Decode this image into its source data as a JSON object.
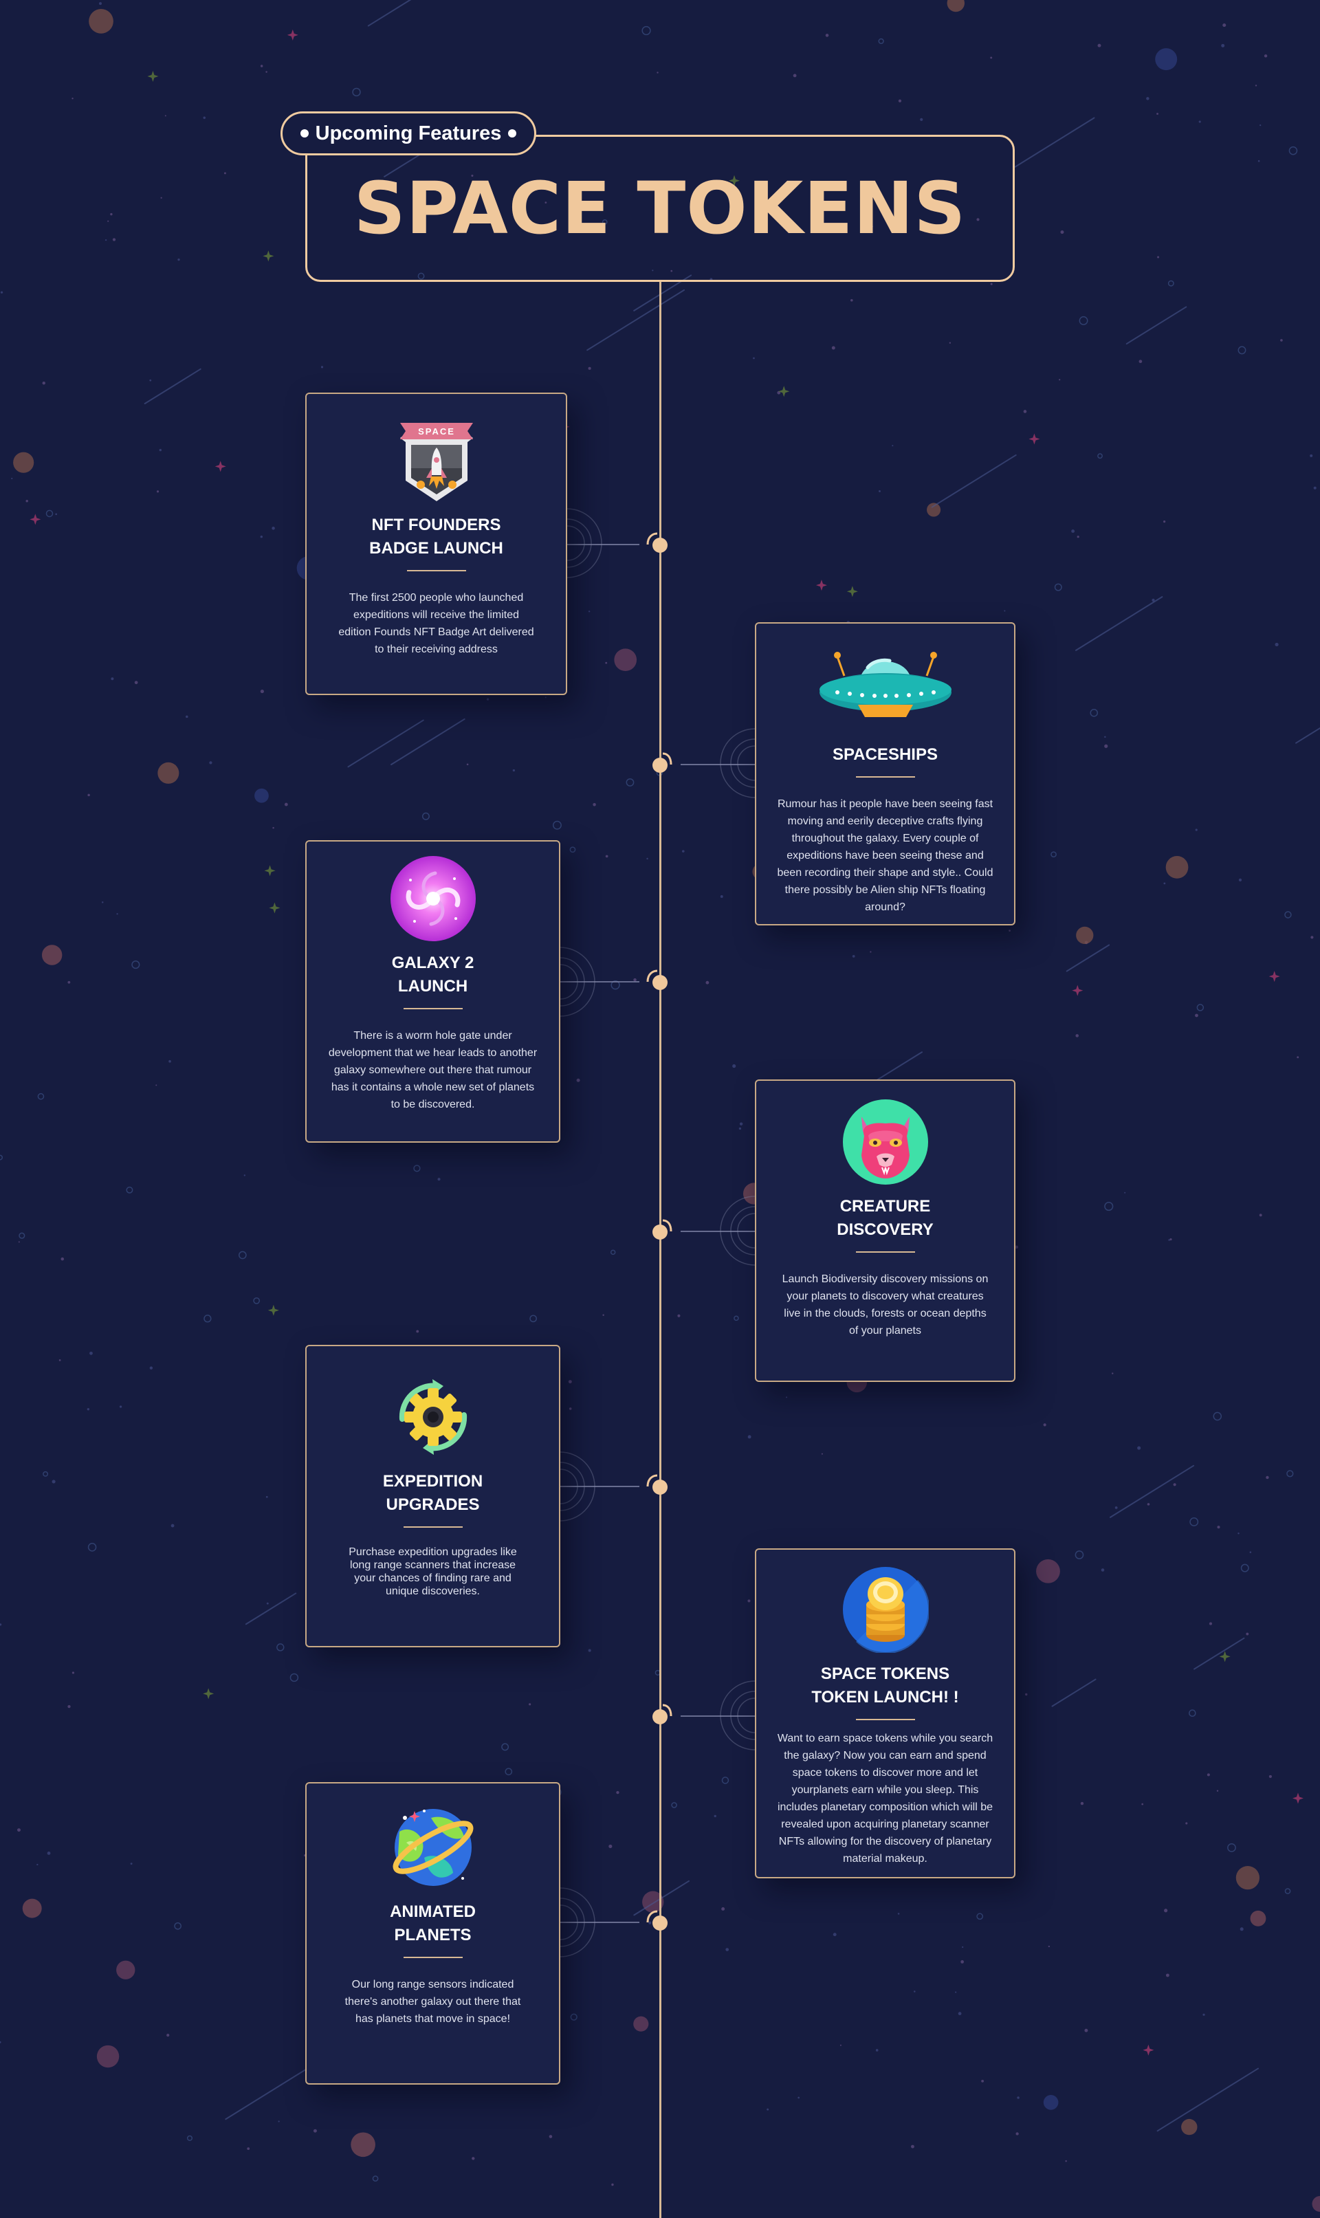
{
  "header": {
    "badge_label": "Upcoming Features",
    "title": "SPACE TOKENS"
  },
  "colors": {
    "background": "#161c40",
    "accent": "#f0c89c",
    "card": "#1a2148",
    "text": "#ffffff"
  },
  "features": [
    {
      "title": "NFT FOUNDERS\nBADGE LAUNCH",
      "icon": "space-badge-icon",
      "description": "The first 2500 people who launched expeditions will receive the limited edition Founds NFT Badge Art delivered to their receiving address",
      "badge_text": "SPACE"
    },
    {
      "title": "SPACESHIPS",
      "icon": "ufo-icon",
      "description": "Rumour has it people have been seeing fast moving and eerily deceptive crafts flying throughout the galaxy. Every couple of expeditions have been seeing these and been recording their shape and style.. Could there possibly be Alien ship NFTs floating around?"
    },
    {
      "title": "GALAXY 2\nLAUNCH",
      "icon": "galaxy-icon",
      "description": "There is a worm hole gate under development that we hear leads to another galaxy somewhere out there that rumour has it contains a whole new set of planets to be discovered."
    },
    {
      "title": "CREATURE\nDISCOVERY",
      "icon": "creature-icon",
      "description": "Launch Biodiversity discovery missions on your planets to discovery what creatures live in the clouds, forests or ocean depths of your planets"
    },
    {
      "title": "EXPEDITION\nUPGRADES",
      "icon": "gear-upgrade-icon",
      "description": "Purchase expedition upgrades like long range scanners that increase your chances of finding rare and unique discoveries."
    },
    {
      "title": "SPACE TOKENS\nTOKEN LAUNCH! !",
      "icon": "coin-stack-icon",
      "description": "Want to earn space tokens while you search the galaxy? Now you can earn and spend space tokens to discover more and let yourplanets earn while you sleep. This includes planetary composition which will be revealed upon acquiring planetary scanner NFTs allowing for the discovery of planetary material makeup."
    },
    {
      "title": "ANIMATED\nPLANETS",
      "icon": "ringed-planet-icon",
      "description": "Our long range sensors indicated there's another galaxy out there that has planets that move in space!"
    }
  ]
}
